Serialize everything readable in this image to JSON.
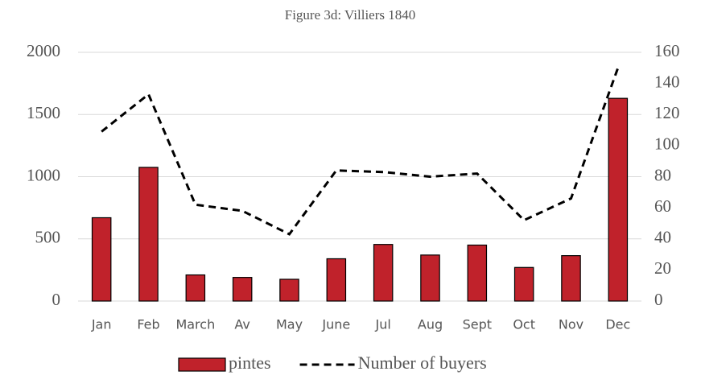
{
  "chart_data": {
    "type": "bar_line",
    "title": "Figure 3d: Villiers 1840",
    "categories": [
      "Jan",
      "Feb",
      "March",
      "Av",
      "May",
      "June",
      "Jul",
      "Aug",
      "Sept",
      "Oct",
      "Nov",
      "Dec"
    ],
    "series": [
      {
        "name": "pintes",
        "type": "bar",
        "color": "#c0222b",
        "axis": "y",
        "values": [
          670,
          1075,
          210,
          190,
          175,
          340,
          455,
          370,
          450,
          270,
          365,
          1630
        ]
      },
      {
        "name": "Number of buyers",
        "type": "line",
        "color": "#000000",
        "axis": "y2",
        "dashed": true,
        "values": [
          109,
          133,
          62,
          58,
          43,
          84,
          83,
          80,
          82,
          52,
          66,
          150
        ]
      }
    ],
    "ylim": [
      0,
      2000
    ],
    "yticks": [
      0,
      500,
      1000,
      1500,
      2000
    ],
    "y2lim": [
      0,
      160
    ],
    "y2ticks": [
      0,
      20,
      40,
      60,
      80,
      100,
      120,
      140,
      160
    ],
    "legend": "bottom",
    "grid": true
  }
}
